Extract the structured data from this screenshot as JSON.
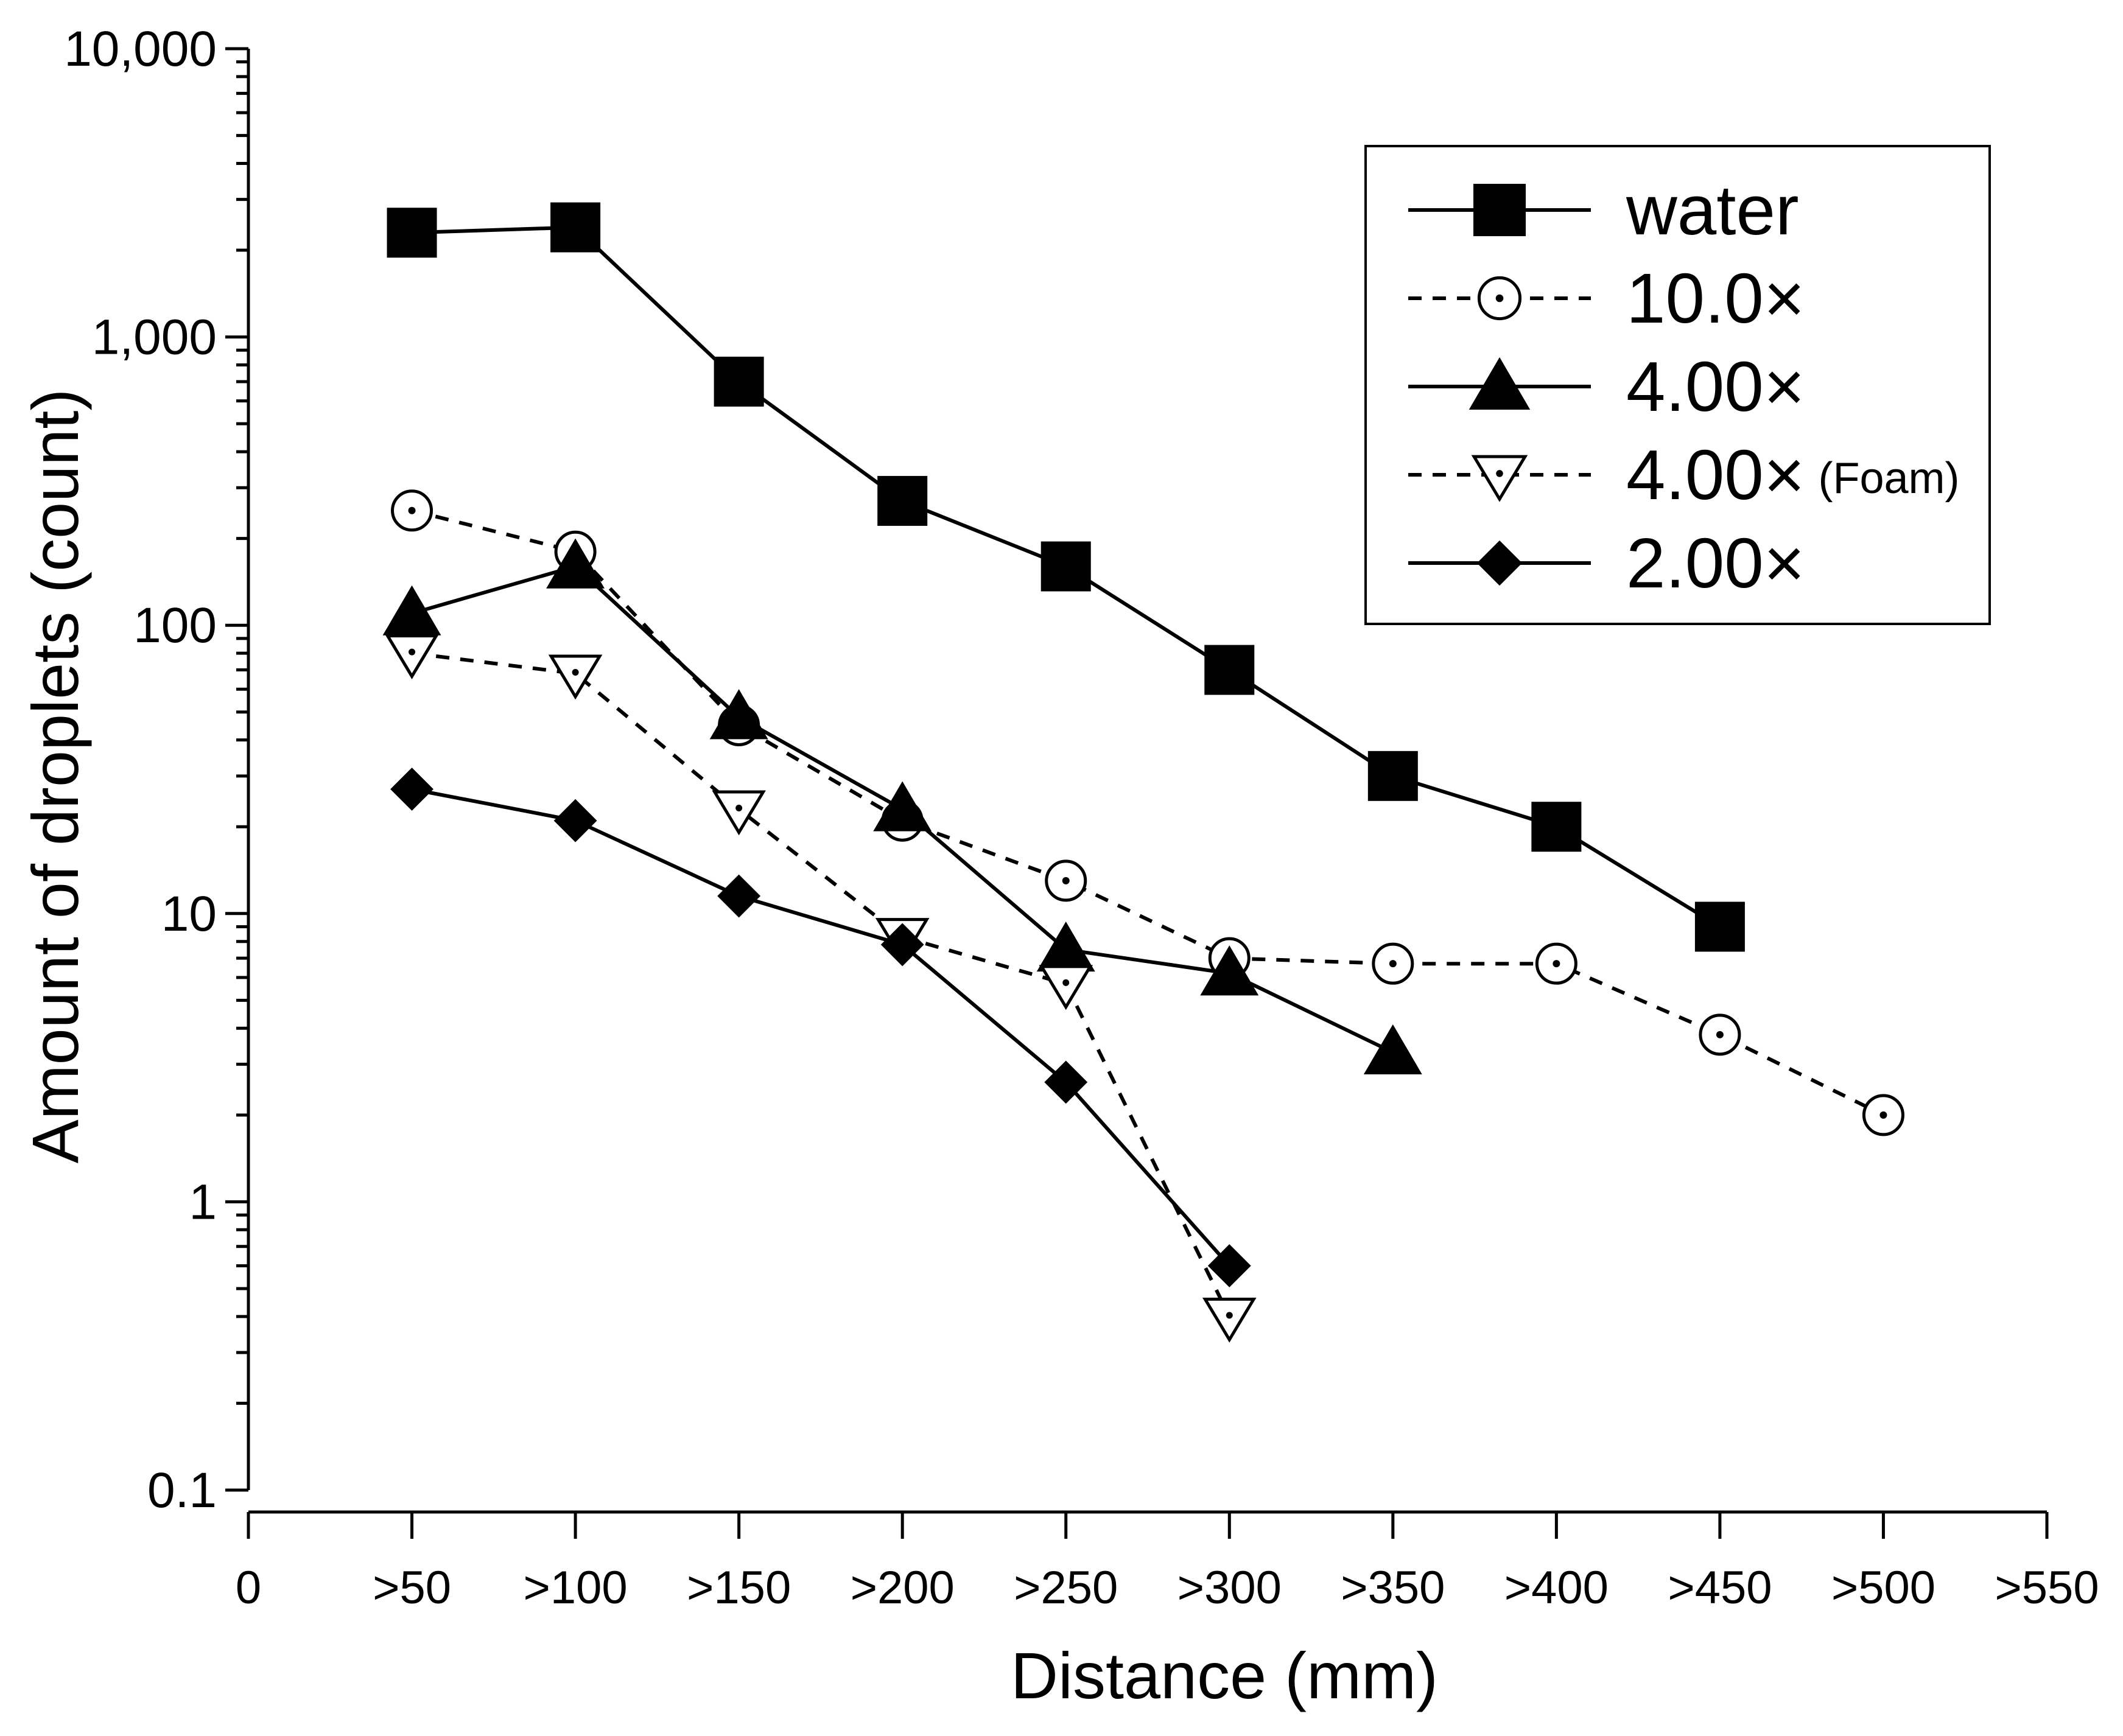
{
  "chart_data": {
    "type": "line",
    "title": "",
    "xlabel": "Distance (mm)",
    "ylabel": "Amount of droplets (count)",
    "yscale": "log",
    "ylim": [
      0.1,
      10000
    ],
    "xlim": [
      0,
      550
    ],
    "grid": false,
    "legend_position": "top-right",
    "x_ticks": [
      {
        "value": 0,
        "label": "0"
      },
      {
        "value": 50,
        "label": ">50"
      },
      {
        "value": 100,
        "label": ">100"
      },
      {
        "value": 150,
        "label": ">150"
      },
      {
        "value": 200,
        "label": ">200"
      },
      {
        "value": 250,
        "label": ">250"
      },
      {
        "value": 300,
        "label": ">300"
      },
      {
        "value": 350,
        "label": ">350"
      },
      {
        "value": 400,
        "label": ">400"
      },
      {
        "value": 450,
        "label": ">450"
      },
      {
        "value": 500,
        "label": ">500"
      },
      {
        "value": 550,
        "label": ">550"
      }
    ],
    "y_ticks": [
      {
        "value": 0.1,
        "label": "0.1"
      },
      {
        "value": 1,
        "label": "1"
      },
      {
        "value": 10,
        "label": "10"
      },
      {
        "value": 100,
        "label": "100"
      },
      {
        "value": 1000,
        "label": "1,000"
      },
      {
        "value": 10000,
        "label": "10,000"
      }
    ],
    "series": [
      {
        "name": "water",
        "note": "",
        "marker": "square-filled",
        "line": "solid",
        "x": [
          50,
          100,
          150,
          200,
          250,
          300,
          350,
          400,
          450
        ],
        "values": [
          2300,
          2400,
          700,
          270,
          160,
          70,
          30,
          20,
          9
        ]
      },
      {
        "name": "10.0×",
        "note": "",
        "marker": "circle-dot-open",
        "line": "dashed",
        "x": [
          50,
          100,
          150,
          200,
          250,
          300,
          350,
          400,
          450,
          500
        ],
        "values": [
          250,
          180,
          45,
          21,
          13,
          7,
          6.7,
          6.7,
          3.8,
          2
        ]
      },
      {
        "name": "4.00×",
        "note": "",
        "marker": "triangle-up-filled",
        "line": "solid",
        "x": [
          50,
          100,
          150,
          200,
          250,
          300,
          350
        ],
        "values": [
          110,
          160,
          48,
          23,
          7.5,
          6.2,
          3.3
        ]
      },
      {
        "name": "4.00×",
        "note": "(Foam)",
        "marker": "triangle-down-dot-open",
        "line": "dashed",
        "x": [
          50,
          100,
          150,
          200,
          250,
          300
        ],
        "values": [
          80,
          68,
          23,
          8.3,
          5.7,
          0.4
        ]
      },
      {
        "name": "2.00×",
        "note": "",
        "marker": "diamond-filled",
        "line": "solid",
        "x": [
          50,
          100,
          150,
          200,
          250,
          300
        ],
        "values": [
          27,
          21,
          11.5,
          7.8,
          2.6,
          0.6
        ]
      }
    ]
  }
}
